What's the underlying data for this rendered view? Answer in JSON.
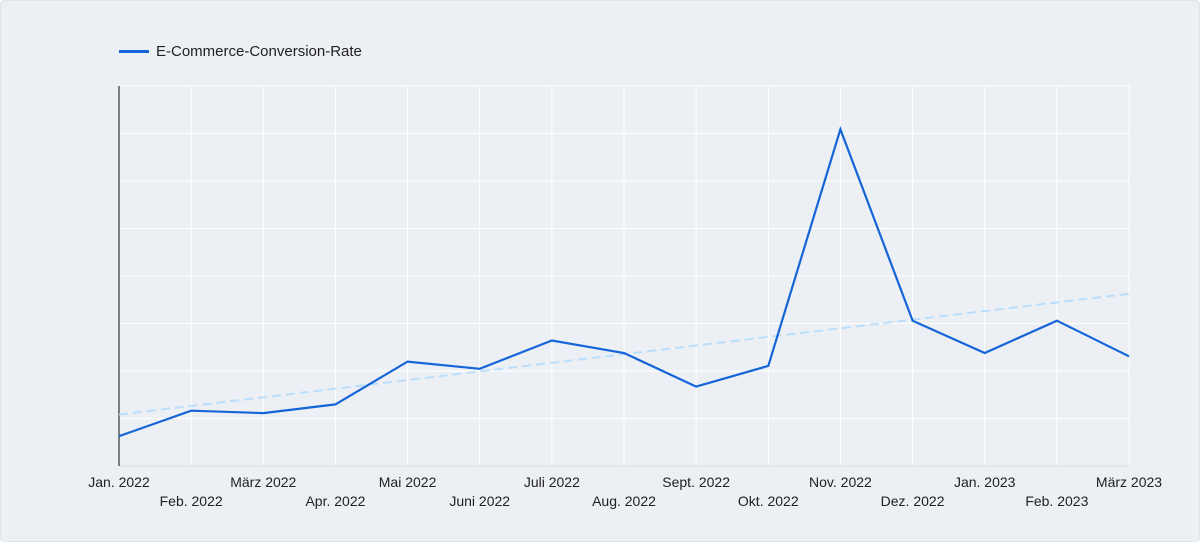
{
  "chart_data": {
    "type": "line",
    "title": "",
    "xlabel": "",
    "ylabel": "",
    "categories": [
      "Jan. 2022",
      "Feb. 2022",
      "März 2022",
      "Apr. 2022",
      "Mai 2022",
      "Juni 2022",
      "Juli 2022",
      "Aug. 2022",
      "Sept. 2022",
      "Okt. 2022",
      "Nov. 2022",
      "Dez. 2022",
      "Jan. 2023",
      "Feb. 2023",
      "März 2023"
    ],
    "series": [
      {
        "name": "E-Commerce-Conversion-Rate",
        "color": "#1565d8",
        "values": [
          0.62,
          1.15,
          1.1,
          1.28,
          2.17,
          2.02,
          2.61,
          2.35,
          1.65,
          2.08,
          7.0,
          3.02,
          2.35,
          3.02,
          2.28
        ]
      }
    ],
    "trendline": {
      "style": "dashed",
      "color": "#bbdefb",
      "start": 1.07,
      "end": 3.58
    },
    "ylim": [
      0,
      7.9
    ],
    "y_gridlines": 8,
    "y_tick_labels_visible": false,
    "grid": true,
    "legend": "top-left"
  }
}
